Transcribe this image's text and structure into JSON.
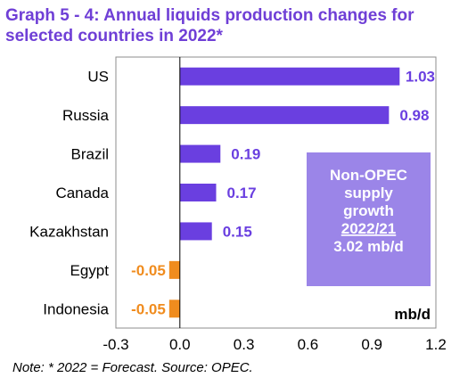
{
  "chart_data": {
    "type": "bar",
    "orientation": "horizontal",
    "title": "Graph 5 - 4: Annual liquids production changes for selected countries in 2022*",
    "categories": [
      "US",
      "Russia",
      "Brazil",
      "Canada",
      "Kazakhstan",
      "Egypt",
      "Indonesia"
    ],
    "values": [
      1.03,
      0.98,
      0.19,
      0.17,
      0.15,
      -0.05,
      -0.05
    ],
    "data_labels": [
      "1.03",
      "0.98",
      "0.19",
      "0.17",
      "0.15",
      "-0.05",
      "-0.05"
    ],
    "xlim": [
      -0.3,
      1.2
    ],
    "x_ticks": [
      "-0.3",
      "0.0",
      "0.3",
      "0.6",
      "0.9",
      "1.2"
    ],
    "unit_label": "mb/d",
    "colors": {
      "positive": "#6a3fe0",
      "negative": "#f08c1e",
      "label_positive": "#6a3fe0",
      "label_negative": "#f08c1e"
    },
    "annotation": {
      "lines": [
        "Non-OPEC",
        "supply",
        "growth",
        "2022/21",
        "3.02 mb/d"
      ],
      "underlined_line": "2022/21",
      "background": "#9b85e8"
    },
    "note": "Note: * 2022 = Forecast. Source: OPEC."
  }
}
